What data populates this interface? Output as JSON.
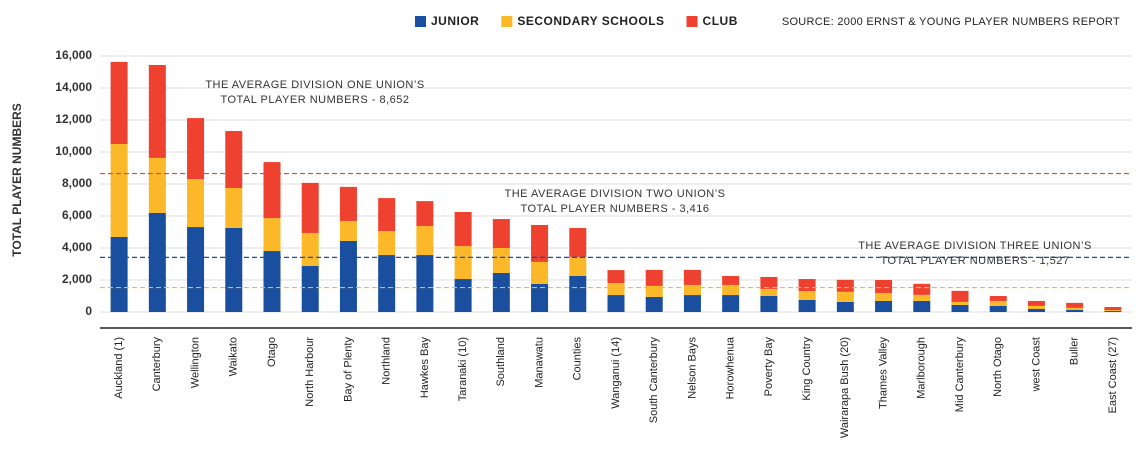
{
  "chart_data": {
    "type": "stacked_bar",
    "y_label": "TOTAL PLAYER NUMBERS",
    "source": "SOURCE: 2000 ERNST & YOUNG PLAYER NUMBERS REPORT",
    "categories": [
      "Auckland (1)",
      "Canterbury",
      "Wellington",
      "Waikato",
      "Otago",
      "North Harbour",
      "Bay of Plenty",
      "Northland",
      "Hawkes Bay",
      "Taranaki (10)",
      "Southland",
      "Manawatu",
      "Counties",
      "Wanganui (14)",
      "South Canterbury",
      "Nelson Bays",
      "Horowhenua",
      "Poverty Bay",
      "King Country",
      "Wairarapa Bush (20)",
      "Thames Valley",
      "Marlborough",
      "Mid Canterbury",
      "North Otago",
      "west Coast",
      "Buller",
      "East Coast (27)"
    ],
    "series": [
      {
        "name": "JUNIOR",
        "color": "#1a4e9e",
        "values": [
          4690,
          6190,
          5310,
          5250,
          3810,
          2880,
          4440,
          3560,
          3560,
          2060,
          2440,
          1750,
          2250,
          1060,
          940,
          1060,
          1060,
          1000,
          750,
          630,
          690,
          690,
          440,
          380,
          190,
          130,
          60
        ]
      },
      {
        "name": "SECONDARY SCHOOLS",
        "color": "#fbb829",
        "values": [
          5810,
          3440,
          3000,
          2500,
          2060,
          2060,
          1250,
          1500,
          1810,
          2060,
          1560,
          1380,
          1190,
          750,
          690,
          630,
          630,
          440,
          560,
          630,
          500,
          380,
          190,
          310,
          190,
          130,
          60
        ]
      },
      {
        "name": "CLUB",
        "color": "#ef4130",
        "values": [
          5130,
          5810,
          3810,
          3560,
          3500,
          3130,
          2130,
          2060,
          1560,
          2130,
          1810,
          2310,
          1810,
          810,
          1000,
          940,
          560,
          750,
          750,
          750,
          810,
          690,
          690,
          310,
          310,
          310,
          190
        ]
      }
    ],
    "reference_lines": [
      {
        "value": 8652,
        "color": "#ef4130",
        "label": [
          "THE AVERAGE DIVISION ONE UNION’S",
          "TOTAL PLAYER NUMBERS - 8,652"
        ]
      },
      {
        "value": 3416,
        "color": "#1a4e9e",
        "label": [
          "THE AVERAGE DIVISION TWO UNION’S",
          "TOTAL PLAYER NUMBERS - 3,416"
        ]
      },
      {
        "value": 1527,
        "color": "#fbb829",
        "label": [
          "THE AVERAGE DIVISION THREE UNION’S",
          "TOTAL PLAYER NUMBERS - 1,527"
        ]
      }
    ],
    "ylim": [
      -1000,
      16500
    ],
    "yticks": [
      0,
      {
        "value": 2000,
        "label": "2,000"
      },
      {
        "value": 4000,
        "label": "4,000"
      },
      {
        "value": 6000,
        "label": "6,000"
      },
      {
        "value": 8000,
        "label": "8,000"
      },
      {
        "value": 10000,
        "label": "10,000"
      },
      {
        "value": 12000,
        "label": "12,000"
      },
      {
        "value": 14000,
        "label": "14,000"
      },
      {
        "value": 16000,
        "label": "16,000"
      }
    ],
    "grid": true
  }
}
